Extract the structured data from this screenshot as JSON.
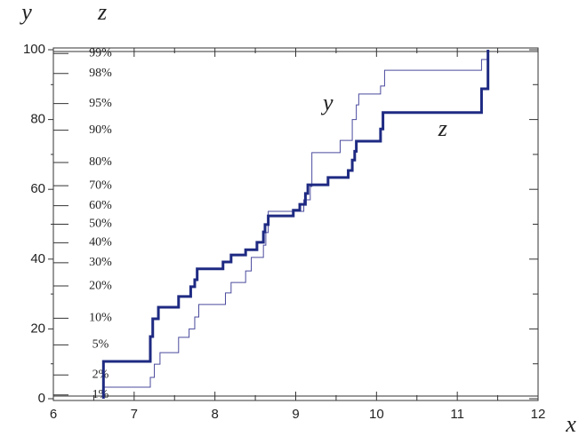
{
  "chart_data": {
    "type": "step",
    "xlabel": "x",
    "ylabel": "y",
    "y2label": "z",
    "xlim": [
      6,
      12
    ],
    "xticks": [
      6,
      7,
      8,
      9,
      10,
      11,
      12
    ],
    "xminor": [
      6.5,
      7.5,
      8.5,
      9.5,
      10.5,
      11.5
    ],
    "ylim": [
      0,
      100
    ],
    "yticks": [
      0,
      20,
      40,
      60,
      80,
      100
    ],
    "yminor": [
      10,
      30,
      50,
      70,
      90
    ],
    "y2scale": "probit",
    "y2lim": [
      0.87,
      99.13
    ],
    "y2ticks": [
      {
        "value": 1,
        "label": "1%"
      },
      {
        "value": 2,
        "label": "2%"
      },
      {
        "value": 5,
        "label": "5%"
      },
      {
        "value": 10,
        "label": "10%"
      },
      {
        "value": 20,
        "label": "20%"
      },
      {
        "value": 30,
        "label": "30%"
      },
      {
        "value": 40,
        "label": "40%"
      },
      {
        "value": 50,
        "label": "50%"
      },
      {
        "value": 60,
        "label": "60%"
      },
      {
        "value": 70,
        "label": "70%"
      },
      {
        "value": 80,
        "label": "80%"
      },
      {
        "value": 90,
        "label": "90%"
      },
      {
        "value": 95,
        "label": "95%"
      },
      {
        "value": 98,
        "label": "98%"
      },
      {
        "value": 99,
        "label": "99%"
      }
    ],
    "series": [
      {
        "name": "y",
        "color": "#4a4a9e",
        "width": 1,
        "x": [
          6.62,
          6.62,
          7.2,
          7.25,
          7.32,
          7.55,
          7.68,
          7.75,
          7.8,
          8.13,
          8.2,
          8.38,
          8.45,
          8.6,
          8.63,
          8.66,
          9.1,
          9.18,
          9.2,
          9.55,
          9.7,
          9.75,
          9.78,
          10.05,
          10.1,
          11.3,
          11.38
        ],
        "values": [
          0,
          3.3,
          6.1,
          9.9,
          13.2,
          17.6,
          20,
          23.4,
          27,
          30.3,
          33.3,
          36.6,
          40.5,
          44,
          47.6,
          53.7,
          57,
          60.8,
          70.5,
          74,
          80,
          84.2,
          87.3,
          89.6,
          94.1,
          97.2,
          100
        ],
        "label_x": 9.4,
        "label_y": 84.2
      },
      {
        "name": "z",
        "color": "#1e2a82",
        "width": 3,
        "x": [
          6.62,
          6.62,
          7.2,
          7.23,
          7.3,
          7.55,
          7.7,
          7.75,
          7.78,
          8.1,
          8.2,
          8.38,
          8.52,
          8.6,
          8.62,
          8.66,
          8.97,
          9.05,
          9.12,
          9.15,
          9.4,
          9.65,
          9.7,
          9.73,
          9.75,
          10.05,
          10.08,
          11.3,
          11.38
        ],
        "values": [
          0,
          10.7,
          17.8,
          22.9,
          26.2,
          29.3,
          32.1,
          34.1,
          37.2,
          39.2,
          41.2,
          42.7,
          44.8,
          47.8,
          49.9,
          52.4,
          54,
          55.7,
          58.8,
          61.3,
          63.4,
          65.4,
          68.4,
          70.9,
          73.8,
          77.3,
          82,
          88.8,
          100
        ],
        "label_x": 10.82,
        "label_y": 76.8
      }
    ]
  }
}
